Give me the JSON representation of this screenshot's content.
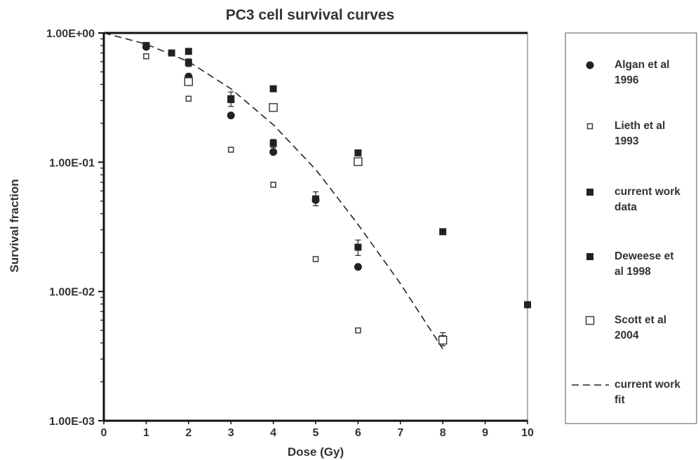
{
  "chart_data": {
    "type": "scatter",
    "title": "PC3 cell survival curves",
    "xlabel": "Dose (Gy)",
    "ylabel": "Survival fraction",
    "xlim": [
      0,
      10
    ],
    "ylim": [
      0.001,
      1
    ],
    "yscale": "log",
    "x_ticks": [
      "0",
      "1",
      "2",
      "3",
      "4",
      "5",
      "6",
      "7",
      "8",
      "9",
      "10"
    ],
    "y_ticks": [
      "1.00E+00",
      "1.00E-01",
      "1.00E-02",
      "1.00E-03"
    ],
    "legend_position": "right",
    "grid": false,
    "series": [
      {
        "name": "Algan et al 1996",
        "label_lines": [
          "Algan et al",
          "1996"
        ],
        "marker": "filled-circle",
        "color": "#222222",
        "points": [
          [
            1,
            0.78
          ],
          [
            2,
            0.46
          ],
          [
            3,
            0.23
          ],
          [
            4,
            0.12
          ],
          [
            5,
            0.051
          ],
          [
            6,
            0.0155
          ]
        ]
      },
      {
        "name": "Lieth et al 1993",
        "label_lines": [
          "Lieth et al",
          "1993"
        ],
        "marker": "small-hollow-square",
        "color": "#333333",
        "points": [
          [
            1,
            0.66
          ],
          [
            2,
            0.31
          ],
          [
            3,
            0.125
          ],
          [
            4,
            0.067
          ],
          [
            5,
            0.0178
          ],
          [
            6,
            0.005
          ]
        ]
      },
      {
        "name": "current work data",
        "label_lines": [
          "current work",
          "data"
        ],
        "marker": "filled-square-errorbar",
        "color": "#222222",
        "points": [
          [
            1,
            0.8
          ],
          [
            2,
            0.59
          ],
          [
            3,
            0.305
          ],
          [
            4,
            0.14
          ],
          [
            5,
            0.052
          ],
          [
            6,
            0.022
          ],
          [
            8,
            0.0043
          ]
        ],
        "errors": [
          [
            1,
            0.76,
            0.84
          ],
          [
            2,
            0.55,
            0.63
          ],
          [
            3,
            0.27,
            0.35
          ],
          [
            4,
            0.13,
            0.15
          ],
          [
            5,
            0.046,
            0.059
          ],
          [
            6,
            0.019,
            0.025
          ],
          [
            8,
            0.0038,
            0.0048
          ]
        ]
      },
      {
        "name": "Deweese et al 1998",
        "label_lines": [
          "Deweese et",
          "al 1998"
        ],
        "marker": "filled-square",
        "color": "#222222",
        "points": [
          [
            1.6,
            0.7
          ],
          [
            2,
            0.72
          ],
          [
            3,
            0.31
          ],
          [
            4,
            0.37
          ],
          [
            6,
            0.118
          ],
          [
            8,
            0.029
          ],
          [
            10,
            0.0079
          ]
        ]
      },
      {
        "name": "Scott et al 2004",
        "label_lines": [
          "Scott et al",
          "2004"
        ],
        "marker": "hollow-square",
        "color": "#222222",
        "points": [
          [
            2,
            0.42
          ],
          [
            4,
            0.265
          ],
          [
            6,
            0.101
          ],
          [
            8,
            0.0042
          ]
        ]
      },
      {
        "name": "current work fit",
        "label_lines": [
          "current work",
          "fit"
        ],
        "marker": "dashed-line",
        "color": "#222222",
        "points": [
          [
            0,
            1.0
          ],
          [
            1,
            0.82
          ],
          [
            2,
            0.6
          ],
          [
            3,
            0.37
          ],
          [
            4,
            0.195
          ],
          [
            5,
            0.088
          ],
          [
            6,
            0.033
          ],
          [
            7,
            0.0115
          ],
          [
            8,
            0.0036
          ]
        ]
      }
    ]
  }
}
